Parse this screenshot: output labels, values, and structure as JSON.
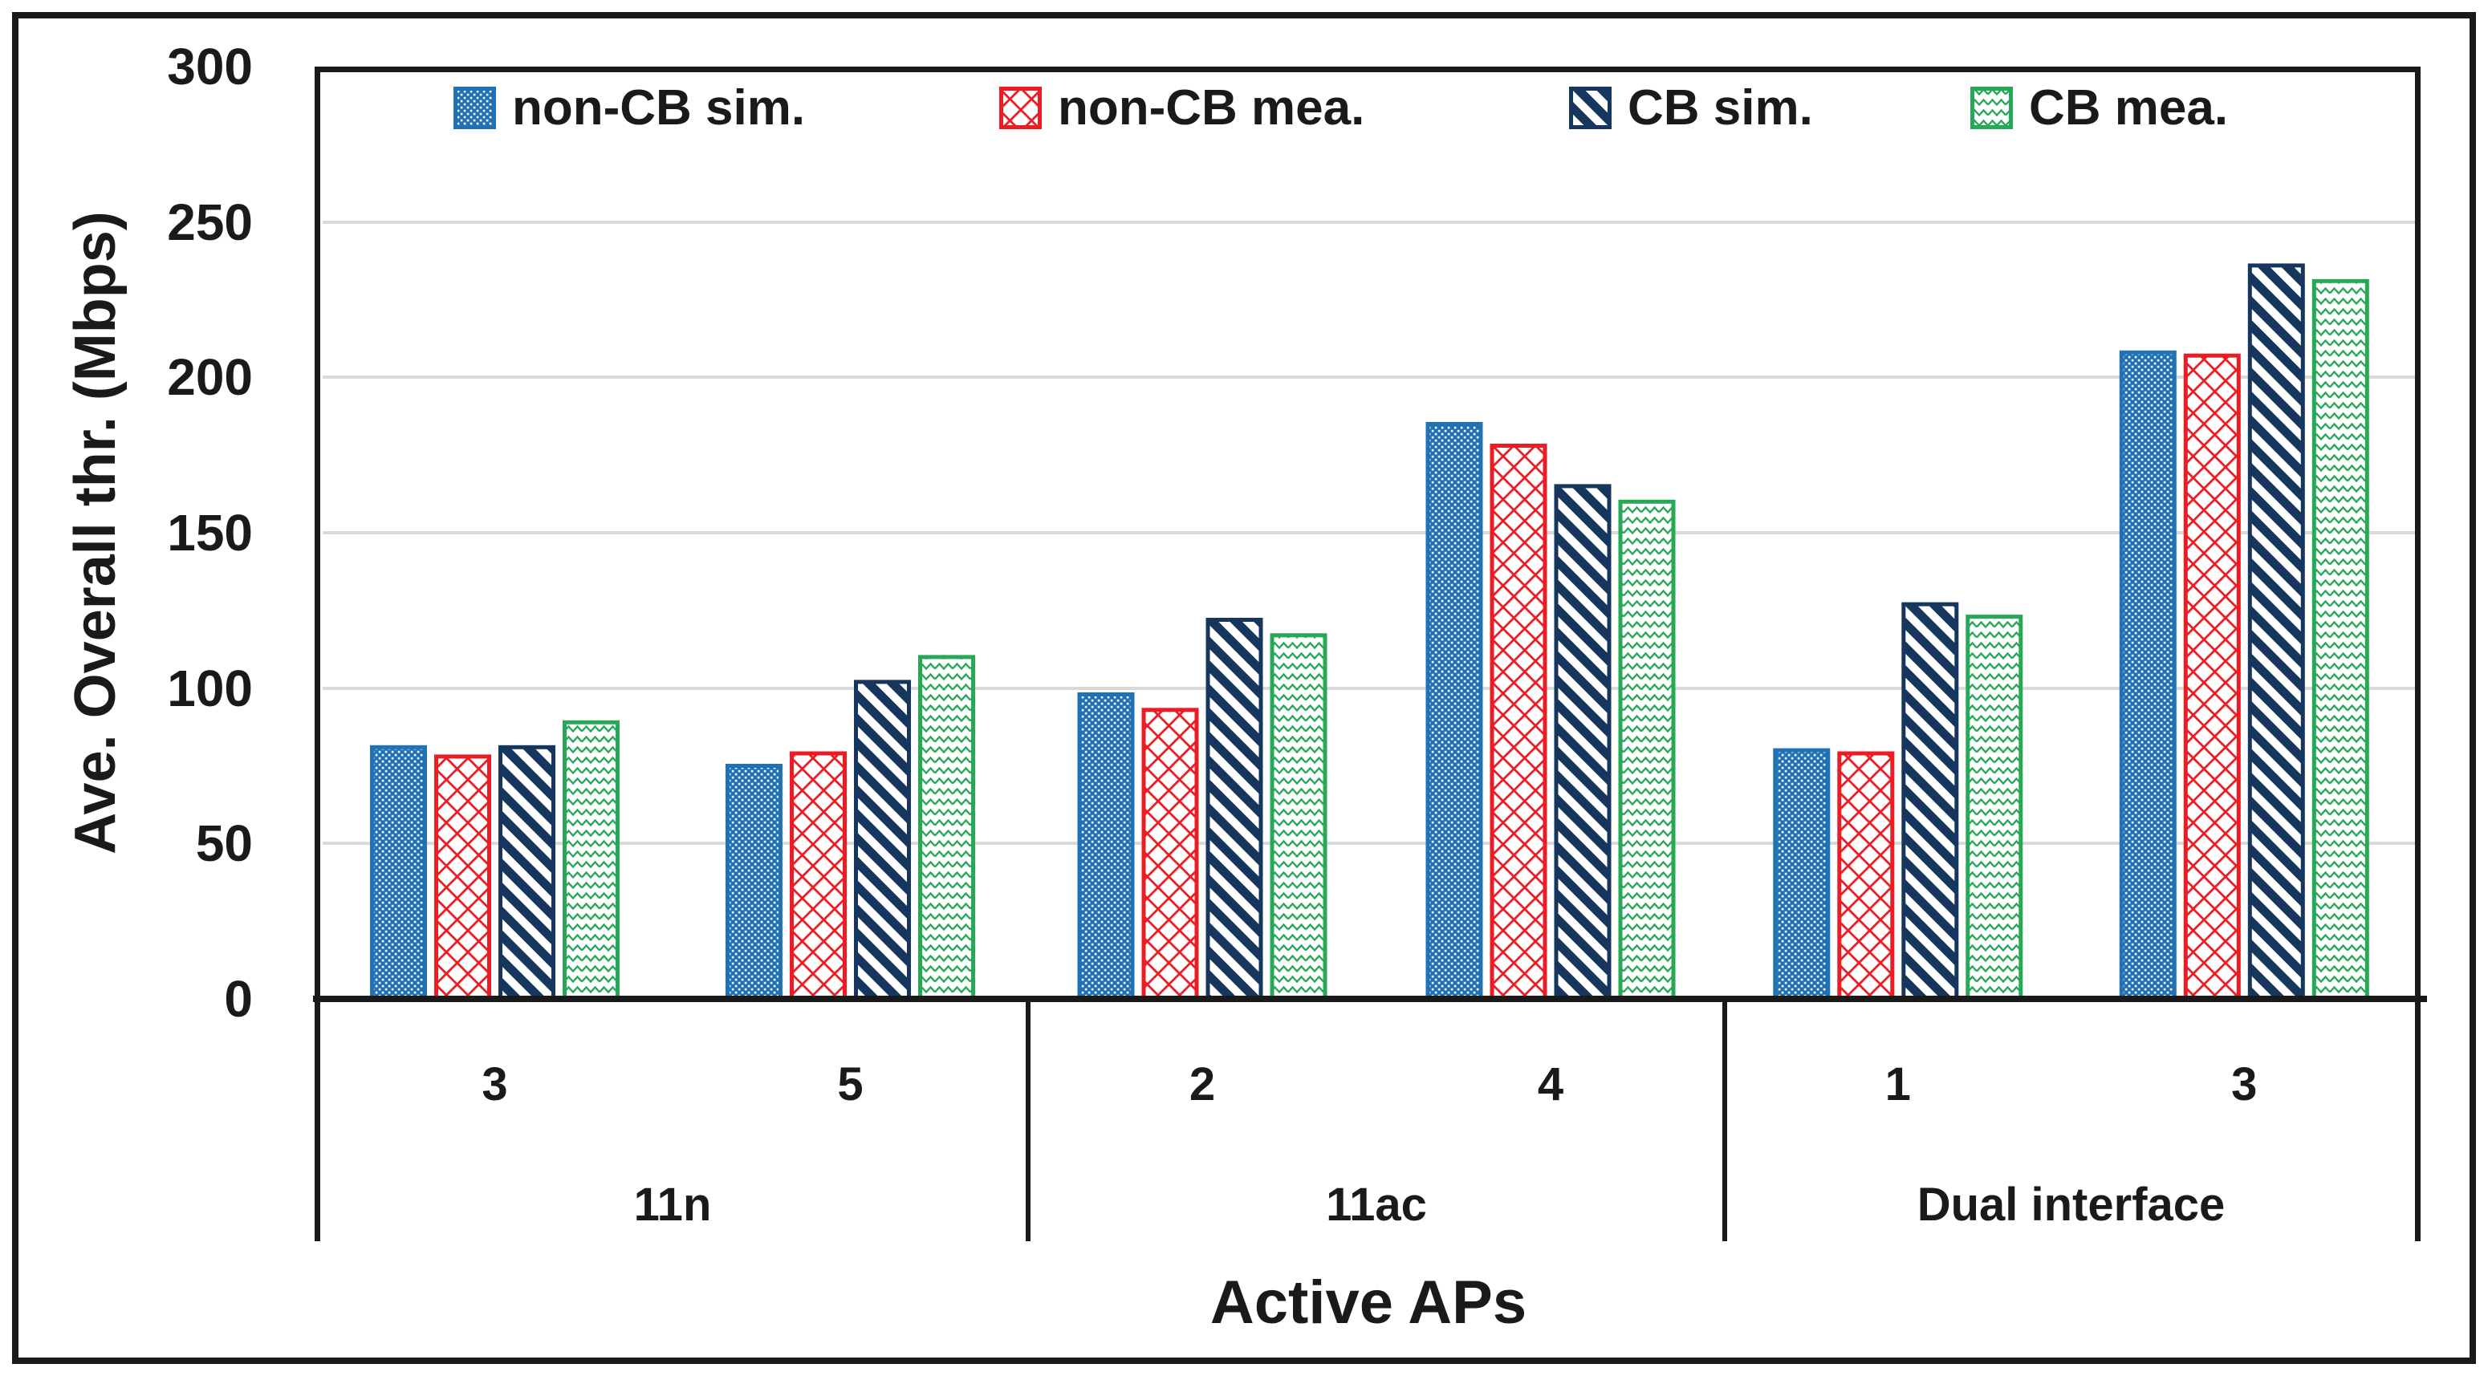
{
  "figure": {
    "background": "#ffffff",
    "border_color": "#1a1a1a",
    "grid_color": "#d9d9d9",
    "y_axis": {
      "title": "Ave. Overall thr. (Mbps)",
      "ticks": [
        0,
        50,
        100,
        150,
        200,
        250,
        300
      ],
      "max": 300
    },
    "x_axis": {
      "title": "Active APs",
      "sections": [
        {
          "name": "11n",
          "subgroups": [
            "3",
            "5"
          ]
        },
        {
          "name": "11ac",
          "subgroups": [
            "2",
            "4"
          ]
        },
        {
          "name": "Dual interface",
          "subgroups": [
            "1",
            "3"
          ]
        }
      ]
    }
  },
  "chart_data": {
    "type": "bar",
    "title": "",
    "xlabel": "Active APs",
    "ylabel": "Ave. Overall thr. (Mbps)",
    "ylim": [
      0,
      300
    ],
    "ytick_step": 50,
    "grid": true,
    "legend_position": "top-inside",
    "categories": [
      "11n-3",
      "11n-5",
      "11ac-2",
      "11ac-4",
      "Dual interface-1",
      "Dual interface-3"
    ],
    "category_labels": [
      "3",
      "5",
      "2",
      "4",
      "1",
      "3"
    ],
    "group_labels": [
      "11n",
      "11ac",
      "Dual interface"
    ],
    "series": [
      {
        "name": "non-CB sim.",
        "color": "#2171b5",
        "pattern": "dots",
        "values": [
          81,
          75,
          98,
          185,
          80,
          208
        ]
      },
      {
        "name": "non-CB mea.",
        "color": "#eb1c24",
        "pattern": "diamond",
        "values": [
          78,
          79,
          93,
          178,
          79,
          207
        ]
      },
      {
        "name": "CB sim.",
        "color": "#17365d",
        "pattern": "stripe",
        "values": [
          81,
          102,
          122,
          165,
          127,
          236
        ]
      },
      {
        "name": "CB mea.",
        "color": "#27a857",
        "pattern": "zigzag",
        "values": [
          89,
          110,
          117,
          160,
          123,
          231
        ]
      }
    ]
  }
}
